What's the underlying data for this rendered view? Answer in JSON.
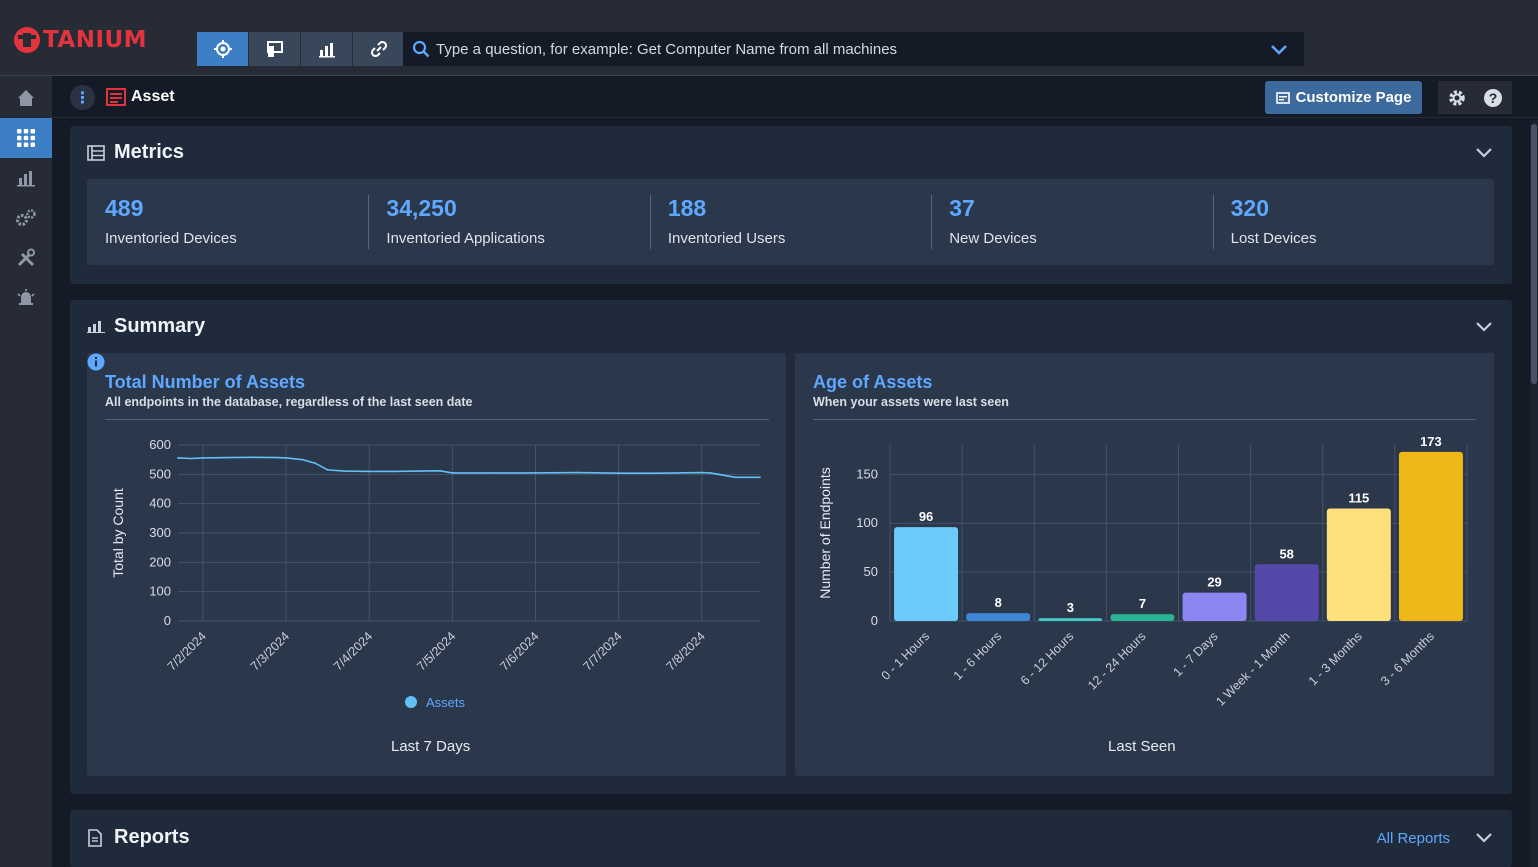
{
  "app": {
    "brand": "TANIUM"
  },
  "toolbar": {
    "buttons": [
      {
        "name": "crosshair-icon"
      },
      {
        "name": "endpoint-icon"
      },
      {
        "name": "chart-icon"
      },
      {
        "name": "link-icon"
      }
    ]
  },
  "search": {
    "placeholder": "Type a question, for example: Get Computer Name from all machines"
  },
  "nav": {
    "items": [
      "home-icon",
      "modules-icon",
      "reports-icon",
      "gears-icon",
      "tools-icon",
      "alarm-icon"
    ],
    "active_index": 1
  },
  "breadcrumb": {
    "title": "Asset"
  },
  "header": {
    "customize_label": "Customize Page"
  },
  "metrics": {
    "title": "Metrics",
    "items": [
      {
        "value": "489",
        "label": "Inventoried Devices"
      },
      {
        "value": "34,250",
        "label": "Inventoried Applications"
      },
      {
        "value": "188",
        "label": "Inventoried Users"
      },
      {
        "value": "37",
        "label": "New Devices"
      },
      {
        "value": "320",
        "label": "Lost Devices"
      }
    ]
  },
  "summary": {
    "title": "Summary",
    "line_card": {
      "title": "Total Number of Assets",
      "subtitle": "All endpoints in the database, regardless of the last seen date",
      "xlabel": "Last 7 Days",
      "ylabel": "Total by Count",
      "legend": "Assets"
    },
    "bar_card": {
      "title": "Age of Assets",
      "subtitle": "When your assets were last seen",
      "xlabel": "Last Seen",
      "ylabel": "Number of Endpoints"
    }
  },
  "reports": {
    "title": "Reports",
    "all_link": "All Reports"
  },
  "colors": {
    "accent": "#3d7fc5",
    "link": "#5fa8ff",
    "brand": "#e3343e",
    "line_series": "#63c0f5"
  },
  "chart_data": [
    {
      "type": "line",
      "title": "Total Number of Assets",
      "xlabel": "Last 7 Days",
      "ylabel": "Total by Count",
      "ylim": [
        0,
        600
      ],
      "yticks": [
        0,
        100,
        200,
        300,
        400,
        500,
        600
      ],
      "categories": [
        "7/2/2024",
        "7/3/2024",
        "7/4/2024",
        "7/5/2024",
        "7/6/2024",
        "7/7/2024",
        "7/8/2024"
      ],
      "x": [
        -0.3,
        -0.15,
        0.0,
        0.3,
        0.6,
        0.9,
        1.0,
        1.2,
        1.35,
        1.5,
        1.7,
        2.0,
        2.3,
        2.6,
        2.85,
        3.0,
        3.5,
        4.0,
        4.5,
        5.0,
        5.5,
        6.0,
        6.1,
        6.2,
        6.4,
        6.7
      ],
      "series": [
        {
          "name": "Assets",
          "color": "#63c0f5",
          "values": [
            556,
            554,
            556,
            557,
            558,
            557,
            556,
            550,
            538,
            515,
            511,
            510,
            510,
            511,
            512,
            505,
            505,
            505,
            506,
            504,
            504,
            506,
            505,
            500,
            490,
            490
          ]
        }
      ],
      "legend": "bottom-center",
      "grid": true
    },
    {
      "type": "bar",
      "title": "Age of Assets",
      "xlabel": "Last Seen",
      "ylabel": "Number of Endpoints",
      "ylim": [
        0,
        180
      ],
      "yticks": [
        0,
        50,
        100,
        150
      ],
      "categories": [
        "0 - 1 Hours",
        "1 - 6 Hours",
        "6 - 12 Hours",
        "12 - 24 Hours",
        "1 - 7 Days",
        "1 Week - 1 Month",
        "1 - 3 Months",
        "3 - 6 Months"
      ],
      "values": [
        96,
        8,
        3,
        7,
        29,
        58,
        115,
        173
      ],
      "bar_colors": [
        "#6ccbfa",
        "#3f86d6",
        "#43c8bf",
        "#2ab394",
        "#8b87f2",
        "#5448a9",
        "#fde07a",
        "#f0b817"
      ],
      "grid": true
    }
  ]
}
